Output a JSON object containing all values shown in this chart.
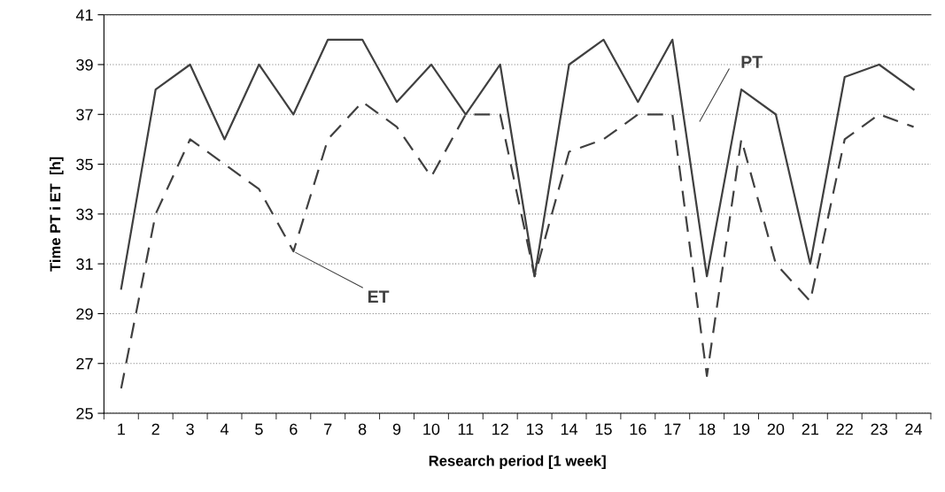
{
  "chart_data": {
    "type": "line",
    "xlabel": "Research period [1 week]",
    "ylabel": "Time PT i ET  [h]",
    "categories": [
      "1",
      "2",
      "3",
      "4",
      "5",
      "6",
      "7",
      "8",
      "9",
      "10",
      "11",
      "12",
      "13",
      "14",
      "15",
      "16",
      "17",
      "18",
      "19",
      "20",
      "21",
      "22",
      "23",
      "24"
    ],
    "series": [
      {
        "color": "#404040",
        "line_style": "solid",
        "values": [
          30,
          38,
          39,
          36,
          39,
          37,
          40,
          40,
          37.5,
          39,
          37,
          39,
          30.5,
          39,
          40,
          37.5,
          40,
          30.5,
          38,
          37,
          31,
          38.5,
          39,
          38
        ]
      },
      {
        "color": "#404040",
        "line_style": "dashed",
        "values": [
          26,
          33,
          36,
          35,
          34,
          31.5,
          36,
          37.5,
          36.5,
          34.5,
          37,
          37,
          30.5,
          35.5,
          36,
          37,
          37,
          26.5,
          36,
          31,
          29.5,
          36,
          37,
          36.5
        ]
      }
    ],
    "annotations": [
      "PT",
      {
        "text": "ET",
        "x": "6",
        "y": 31.5
      }
    ],
    "ylim": [
      25,
      41
    ],
    "yticks": [
      25,
      27,
      29,
      31,
      33,
      35,
      37,
      39,
      41
    ],
    "grid": "y",
    "marker": "none"
  }
}
